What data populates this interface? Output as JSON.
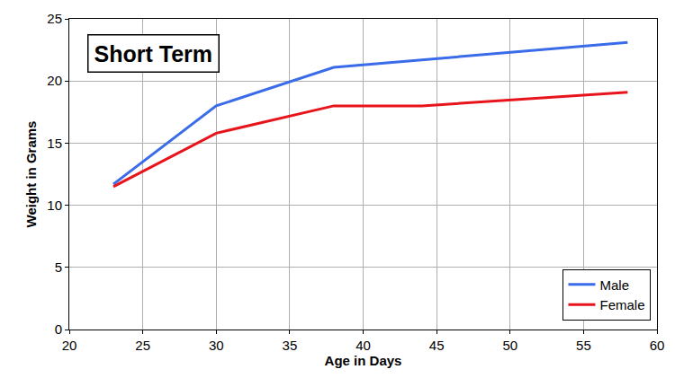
{
  "chart_data": {
    "type": "line",
    "title": "Short Term",
    "x_label": "Age in Days",
    "y_label": "Weight in Grams",
    "series": [
      {
        "name": "Male",
        "color": "#3a6be8",
        "x": [
          23,
          30,
          38,
          58
        ],
        "values": [
          11.7,
          18,
          21.1,
          23.1
        ]
      },
      {
        "name": "Female",
        "color": "#e8141c",
        "x": [
          23,
          30,
          38,
          44,
          58
        ],
        "values": [
          11.5,
          15.8,
          18,
          18,
          19.1
        ]
      }
    ],
    "xlim": [
      20,
      60
    ],
    "xticks": [
      20,
      25,
      30,
      35,
      40,
      45,
      50,
      55,
      60
    ],
    "ylim": [
      0,
      25
    ],
    "yticks": [
      0,
      5,
      10,
      15,
      20,
      25
    ],
    "grid": true,
    "legend": "bottom right"
  }
}
